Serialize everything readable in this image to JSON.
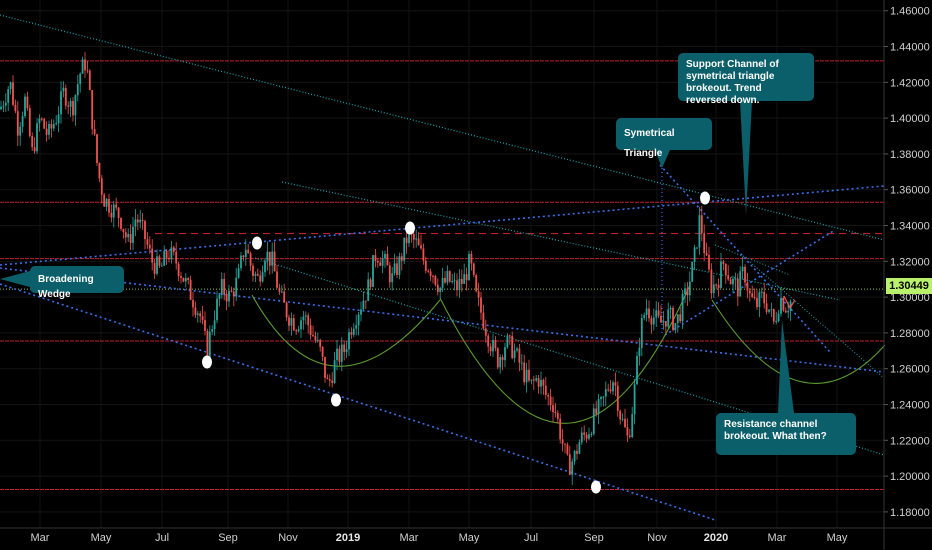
{
  "chart_data": {
    "type": "candlestick",
    "title": "",
    "current_price": "1.30449",
    "y_axis": {
      "ticks": [
        "1.46000",
        "1.44000",
        "1.42000",
        "1.40000",
        "1.38000",
        "1.36000",
        "1.34000",
        "1.32000",
        "1.30000",
        "1.28000",
        "1.26000",
        "1.24000",
        "1.22000",
        "1.20000",
        "1.18000"
      ],
      "range": [
        1.171,
        1.466
      ]
    },
    "x_axis": {
      "ticks": [
        {
          "label": "Mar",
          "bold": false
        },
        {
          "label": "May",
          "bold": false
        },
        {
          "label": "Jul",
          "bold": false
        },
        {
          "label": "Sep",
          "bold": false
        },
        {
          "label": "Nov",
          "bold": false
        },
        {
          "label": "2019",
          "bold": true
        },
        {
          "label": "Mar",
          "bold": false
        },
        {
          "label": "May",
          "bold": false
        },
        {
          "label": "Jul",
          "bold": false
        },
        {
          "label": "Sep",
          "bold": false
        },
        {
          "label": "Nov",
          "bold": false
        },
        {
          "label": "2020",
          "bold": true
        },
        {
          "label": "Mar",
          "bold": false
        },
        {
          "label": "May",
          "bold": false
        }
      ]
    },
    "price_path": [
      [
        0,
        1.405
      ],
      [
        10,
        1.42
      ],
      [
        18,
        1.395
      ],
      [
        25,
        1.41
      ],
      [
        32,
        1.38
      ],
      [
        40,
        1.4
      ],
      [
        48,
        1.39
      ],
      [
        56,
        1.4
      ],
      [
        64,
        1.415
      ],
      [
        72,
        1.405
      ],
      [
        80,
        1.425
      ],
      [
        86,
        1.432
      ],
      [
        92,
        1.4
      ],
      [
        98,
        1.37
      ],
      [
        104,
        1.355
      ],
      [
        112,
        1.35
      ],
      [
        120,
        1.345
      ],
      [
        128,
        1.33
      ],
      [
        136,
        1.345
      ],
      [
        144,
        1.335
      ],
      [
        152,
        1.32
      ],
      [
        160,
        1.315
      ],
      [
        168,
        1.325
      ],
      [
        176,
        1.32
      ],
      [
        184,
        1.31
      ],
      [
        192,
        1.3
      ],
      [
        200,
        1.29
      ],
      [
        207,
        1.27
      ],
      [
        214,
        1.29
      ],
      [
        222,
        1.305
      ],
      [
        230,
        1.3
      ],
      [
        238,
        1.31
      ],
      [
        245,
        1.33
      ],
      [
        252,
        1.315
      ],
      [
        258,
        1.31
      ],
      [
        265,
        1.325
      ],
      [
        272,
        1.32
      ],
      [
        280,
        1.3
      ],
      [
        288,
        1.29
      ],
      [
        296,
        1.285
      ],
      [
        304,
        1.29
      ],
      [
        312,
        1.28
      ],
      [
        320,
        1.27
      ],
      [
        328,
        1.25
      ],
      [
        336,
        1.265
      ],
      [
        344,
        1.27
      ],
      [
        352,
        1.285
      ],
      [
        360,
        1.295
      ],
      [
        368,
        1.305
      ],
      [
        376,
        1.325
      ],
      [
        384,
        1.32
      ],
      [
        392,
        1.31
      ],
      [
        400,
        1.32
      ],
      [
        408,
        1.335
      ],
      [
        416,
        1.33
      ],
      [
        424,
        1.32
      ],
      [
        432,
        1.315
      ],
      [
        440,
        1.305
      ],
      [
        448,
        1.31
      ],
      [
        456,
        1.305
      ],
      [
        464,
        1.31
      ],
      [
        470,
        1.32
      ],
      [
        476,
        1.3
      ],
      [
        482,
        1.29
      ],
      [
        490,
        1.275
      ],
      [
        498,
        1.265
      ],
      [
        506,
        1.275
      ],
      [
        514,
        1.27
      ],
      [
        522,
        1.26
      ],
      [
        530,
        1.25
      ],
      [
        538,
        1.255
      ],
      [
        546,
        1.245
      ],
      [
        554,
        1.24
      ],
      [
        562,
        1.22
      ],
      [
        568,
        1.205
      ],
      [
        574,
        1.21
      ],
      [
        580,
        1.22
      ],
      [
        588,
        1.225
      ],
      [
        596,
        1.235
      ],
      [
        602,
        1.24
      ],
      [
        608,
        1.25
      ],
      [
        614,
        1.255
      ],
      [
        620,
        1.235
      ],
      [
        628,
        1.22
      ],
      [
        634,
        1.245
      ],
      [
        640,
        1.28
      ],
      [
        646,
        1.295
      ],
      [
        652,
        1.29
      ],
      [
        660,
        1.285
      ],
      [
        668,
        1.29
      ],
      [
        676,
        1.285
      ],
      [
        682,
        1.295
      ],
      [
        688,
        1.305
      ],
      [
        694,
        1.32
      ],
      [
        700,
        1.345
      ],
      [
        706,
        1.32
      ],
      [
        712,
        1.305
      ],
      [
        718,
        1.31
      ],
      [
        724,
        1.32
      ],
      [
        730,
        1.31
      ],
      [
        738,
        1.305
      ],
      [
        744,
        1.315
      ],
      [
        750,
        1.3
      ],
      [
        756,
        1.295
      ],
      [
        762,
        1.3
      ],
      [
        768,
        1.295
      ],
      [
        774,
        1.285
      ],
      [
        780,
        1.3
      ],
      [
        786,
        1.295
      ],
      [
        792,
        1.298
      ]
    ],
    "annotations": [
      {
        "text": "Broadening Wedge"
      },
      {
        "text": "Symetrical Triangle"
      },
      {
        "text": "Support Channel of symetrical triangle brokeout. Trend reversed down."
      },
      {
        "text": "Resistance channel brokeout. What then?"
      }
    ]
  }
}
